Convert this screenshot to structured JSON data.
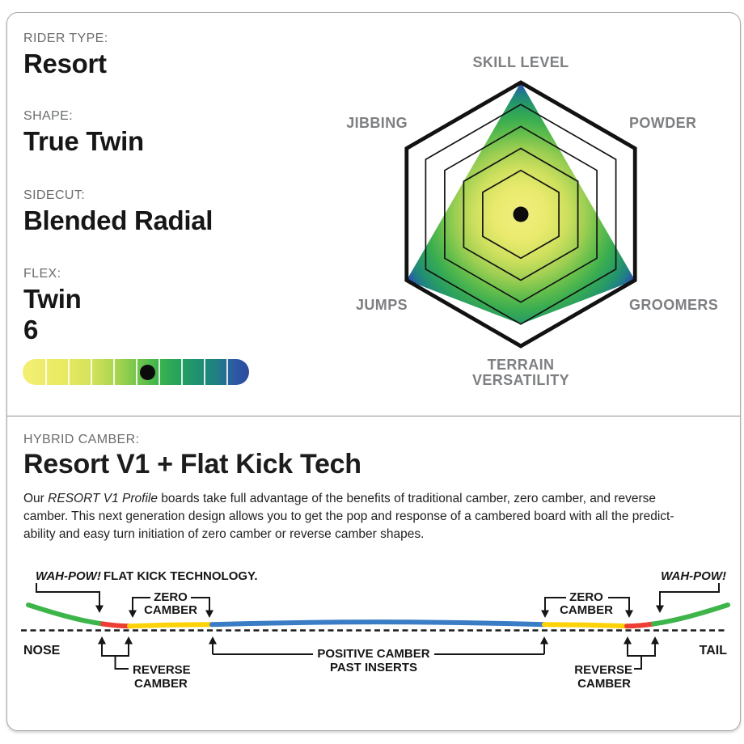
{
  "specs": {
    "rider_type": {
      "label": "RIDER TYPE:",
      "value": "Resort"
    },
    "shape": {
      "label": "SHAPE:",
      "value": "True Twin"
    },
    "sidecut": {
      "label": "SIDECUT:",
      "value": "Blended Radial"
    },
    "flex": {
      "label": "FLEX:",
      "value_line1": "Twin",
      "value_line2": "6"
    }
  },
  "chart_data": {
    "radar": {
      "type": "radar",
      "categories": [
        "SKILL LEVEL",
        "POWDER",
        "GROOMERS",
        "TERRAIN VERSATILITY",
        "JUMPS",
        "JIBBING"
      ],
      "values": [
        6,
        3,
        6,
        5,
        6,
        3
      ],
      "max": 6,
      "ring_levels": [
        2,
        3,
        4,
        5,
        6
      ],
      "outline_color": "#121212",
      "label_color": "#7d7f82",
      "center_dot_color": "#0c0c0c",
      "gradient_stops": [
        [
          "0%",
          "#f1ee7e"
        ],
        [
          "20%",
          "#e9ea6e"
        ],
        [
          "35%",
          "#cfe05e"
        ],
        [
          "50%",
          "#9bce52"
        ],
        [
          "62%",
          "#61bd4b"
        ],
        [
          "73%",
          "#38ac51"
        ],
        [
          "83%",
          "#279a66"
        ],
        [
          "91%",
          "#1f8382"
        ],
        [
          "97%",
          "#2b5ba6"
        ],
        [
          "100%",
          "#2b3f98"
        ]
      ]
    },
    "flex": {
      "type": "scale",
      "value": 6,
      "segments": 10,
      "dot_color": "#0b0b0b",
      "gradient_stops": [
        [
          "0%",
          "#f3ef74"
        ],
        [
          "18%",
          "#e9e962"
        ],
        [
          "30%",
          "#d4e35a"
        ],
        [
          "42%",
          "#a6d350"
        ],
        [
          "52%",
          "#6cc24c"
        ],
        [
          "60%",
          "#3cb44d"
        ],
        [
          "68%",
          "#27a45c"
        ],
        [
          "77%",
          "#1f9170"
        ],
        [
          "86%",
          "#217e85"
        ],
        [
          "94%",
          "#2c58a5"
        ],
        [
          "100%",
          "#2d4a9d"
        ]
      ]
    }
  },
  "camber": {
    "label": "HYBRID CAMBER:",
    "title": "Resort V1 + Flat Kick Tech",
    "para_line1_pre": "Our ",
    "para_line1_italic": "RESORT V1 Profile",
    "para_line1_rest": " boards take full advantage of the benefits of traditional camber, zero camber, and reverse",
    "para_line2": "camber. This next generation design allows you to get the pop and response of a cambered board with all the predict-",
    "para_line3": "ability and easy turn initiation of zero camber or reverse camber shapes.",
    "diagram": {
      "wah_pow": "WAH-POW!",
      "flat_kick": "FLAT KICK TECHNOLOGY.",
      "zero_line1": "ZERO",
      "zero_line2": "CAMBER",
      "reverse_line1": "REVERSE",
      "reverse_line2": "CAMBER",
      "positive_line1": "POSITIVE CAMBER",
      "positive_line2": "PAST INSERTS",
      "nose": "NOSE",
      "tail": "TAIL",
      "colors": {
        "green": "#3eb54a",
        "red": "#ee3d33",
        "yellow": "#fdd206",
        "blue": "#3a7dc5"
      }
    }
  }
}
